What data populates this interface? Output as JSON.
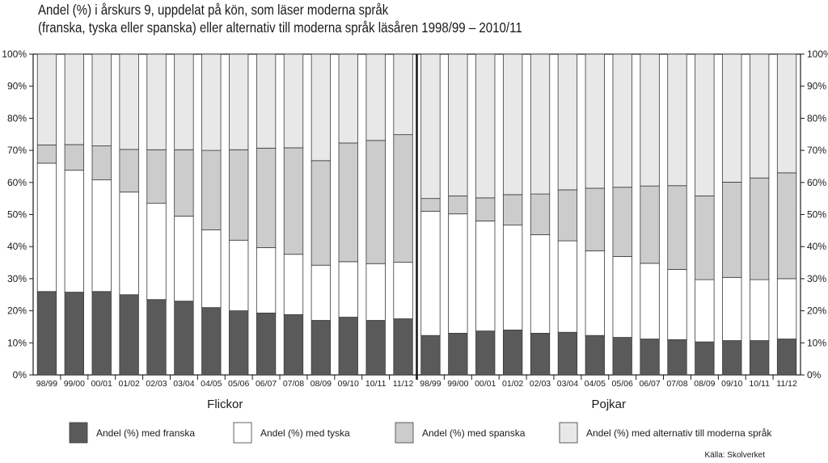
{
  "chart_data": {
    "type": "bar",
    "stacked": true,
    "title": "Andel (%) i årskurs 9, uppdelat på kön, som läser moderna språk",
    "subtitle": "(franska, tyska eller spanska) eller alternativ till moderna språk läsåren 1998/99 – 2010/11",
    "source": "Källa: Skolverket",
    "ylim": [
      0,
      100
    ],
    "yticks": [
      "0%",
      "10%",
      "20%",
      "30%",
      "40%",
      "50%",
      "60%",
      "70%",
      "80%",
      "90%",
      "100%"
    ],
    "categories": [
      "98/99",
      "99/00",
      "00/01",
      "01/02",
      "02/03",
      "03/04",
      "04/05",
      "05/06",
      "06/07",
      "07/08",
      "08/09",
      "09/10",
      "10/11",
      "11/12"
    ],
    "legend_position": "bottom",
    "series": [
      {
        "name": "Andel (%) med franska",
        "color": "#5a5a5a"
      },
      {
        "name": "Andel (%) med tyska",
        "color": "#ffffff"
      },
      {
        "name": "Andel (%) med spanska",
        "color": "#cccccc"
      },
      {
        "name": "Andel (%) med alternativ till moderna språk",
        "color": "#e8e8e8"
      }
    ],
    "groups": [
      {
        "name": "Flickor",
        "franska": [
          26,
          25.8,
          26,
          25,
          23.5,
          23,
          21,
          20,
          19.3,
          18.8,
          17,
          18,
          17,
          17.5
        ],
        "tyska": [
          40,
          38,
          34.8,
          32,
          30,
          26.5,
          24.2,
          22,
          20.4,
          18.8,
          17.2,
          17.3,
          17.7,
          17.6
        ],
        "spanska": [
          5.7,
          8,
          10.6,
          13.3,
          16.7,
          20.7,
          24.8,
          28.2,
          31,
          33.2,
          32.6,
          37,
          38.4,
          39.8
        ],
        "alternativ": [
          28.3,
          28.2,
          28.6,
          29.7,
          29.8,
          29.8,
          30,
          29.8,
          29.3,
          29.2,
          33.2,
          27.7,
          26.9,
          25.1
        ]
      },
      {
        "name": "Pojkar",
        "franska": [
          12.3,
          13,
          13.7,
          14,
          13,
          13.3,
          12.3,
          11.7,
          11.2,
          11,
          10.3,
          10.7,
          10.7,
          11.2
        ],
        "tyska": [
          38.7,
          37.2,
          34.3,
          32.7,
          30.7,
          28.5,
          26.4,
          25.2,
          23.6,
          21.9,
          19.4,
          19.7,
          19,
          18.8
        ],
        "spanska": [
          4,
          5.6,
          7.2,
          9.5,
          12.7,
          15.9,
          19.5,
          21.6,
          24.1,
          26.1,
          26.1,
          29.7,
          31.7,
          33
        ],
        "alternativ": [
          45,
          44.2,
          44.8,
          43.8,
          43.6,
          42.3,
          41.8,
          41.5,
          41.1,
          41,
          44.2,
          39.9,
          38.6,
          37
        ]
      }
    ]
  }
}
